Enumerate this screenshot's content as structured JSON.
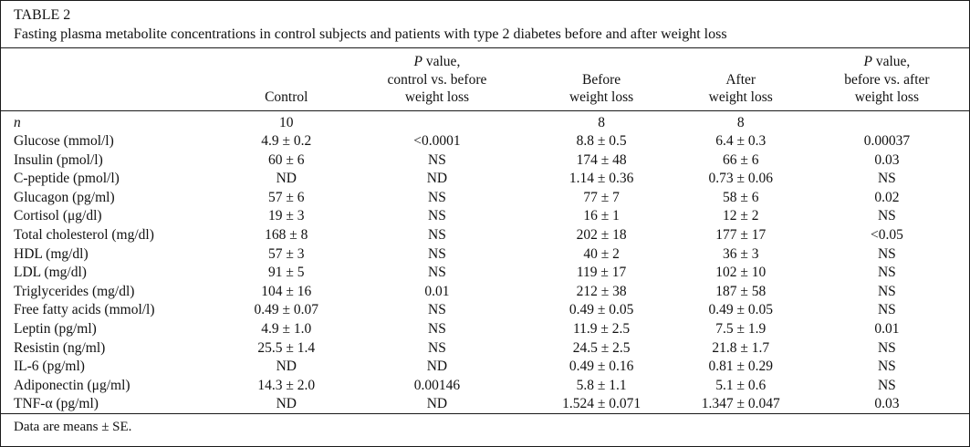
{
  "table": {
    "label": "TABLE 2",
    "caption": "Fasting plasma metabolite concentrations in control subjects and patients with type 2 diabetes before and after weight loss",
    "columns": [
      {
        "lines": []
      },
      {
        "lines": [
          "Control"
        ]
      },
      {
        "lines": [
          "P value,",
          "control vs. before",
          "weight loss"
        ]
      },
      {
        "lines": [
          "Before",
          "weight loss"
        ]
      },
      {
        "lines": [
          "After",
          "weight loss"
        ]
      },
      {
        "lines": [
          "P value,",
          "before vs. after",
          "weight loss"
        ]
      }
    ],
    "rows": [
      {
        "label": "n",
        "italic": true,
        "cells": [
          "10",
          "",
          "8",
          "8",
          ""
        ]
      },
      {
        "label": "Glucose (mmol/l)",
        "cells": [
          "4.9 ± 0.2",
          "<0.0001",
          "8.8 ± 0.5",
          "6.4 ± 0.3",
          "0.00037"
        ]
      },
      {
        "label": "Insulin (pmol/l)",
        "cells": [
          "60 ± 6",
          "NS",
          "174 ± 48",
          "66 ± 6",
          "0.03"
        ]
      },
      {
        "label": "C-peptide (pmol/l)",
        "cells": [
          "ND",
          "ND",
          "1.14 ± 0.36",
          "0.73 ± 0.06",
          "NS"
        ]
      },
      {
        "label": "Glucagon (pg/ml)",
        "cells": [
          "57 ± 6",
          "NS",
          "77 ± 7",
          "58 ± 6",
          "0.02"
        ]
      },
      {
        "label": "Cortisol (μg/dl)",
        "cells": [
          "19 ± 3",
          "NS",
          "16 ± 1",
          "12 ± 2",
          "NS"
        ]
      },
      {
        "label": "Total cholesterol (mg/dl)",
        "cells": [
          "168 ± 8",
          "NS",
          "202 ± 18",
          "177 ± 17",
          "<0.05"
        ]
      },
      {
        "label": "HDL (mg/dl)",
        "cells": [
          "57 ± 3",
          "NS",
          "40 ± 2",
          "36 ± 3",
          "NS"
        ]
      },
      {
        "label": "LDL (mg/dl)",
        "cells": [
          "91 ± 5",
          "NS",
          "119 ± 17",
          "102 ± 10",
          "NS"
        ]
      },
      {
        "label": "Triglycerides (mg/dl)",
        "cells": [
          "104 ± 16",
          "0.01",
          "212 ± 38",
          "187 ± 58",
          "NS"
        ]
      },
      {
        "label": "Free fatty acids (mmol/l)",
        "cells": [
          "0.49 ± 0.07",
          "NS",
          "0.49 ± 0.05",
          "0.49 ± 0.05",
          "NS"
        ]
      },
      {
        "label": "Leptin (pg/ml)",
        "cells": [
          "4.9 ± 1.0",
          "NS",
          "11.9 ± 2.5",
          "7.5 ± 1.9",
          "0.01"
        ]
      },
      {
        "label": "Resistin (ng/ml)",
        "cells": [
          "25.5 ± 1.4",
          "NS",
          "24.5 ± 2.5",
          "21.8 ± 1.7",
          "NS"
        ]
      },
      {
        "label": "IL-6 (pg/ml)",
        "cells": [
          "ND",
          "ND",
          "0.49 ± 0.16",
          "0.81 ± 0.29",
          "NS"
        ]
      },
      {
        "label": "Adiponectin (μg/ml)",
        "cells": [
          "14.3 ± 2.0",
          "0.00146",
          "5.8 ± 1.1",
          "5.1 ± 0.6",
          "NS"
        ]
      },
      {
        "label": "TNF-α (pg/ml)",
        "cells": [
          "ND",
          "ND",
          "1.524 ± 0.071",
          "1.347 ± 0.047",
          "0.03"
        ]
      }
    ],
    "footnote": "Data are means ± SE."
  }
}
